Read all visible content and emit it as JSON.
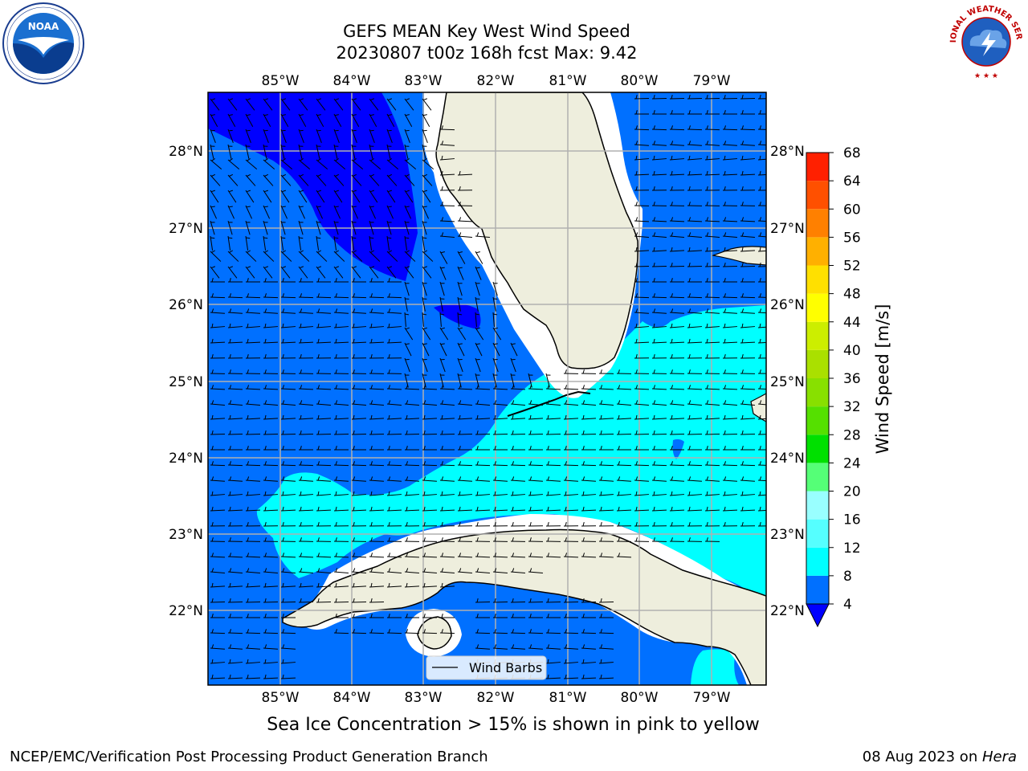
{
  "header": {
    "title_line1": "GEFS MEAN Key West Wind Speed",
    "title_line2": "20230807 t00z 168h fcst   Max: 9.42"
  },
  "logos": {
    "left": "NOAA",
    "right_text": "NATIONAL WEATHER SERVICE"
  },
  "map": {
    "lon_labels": [
      "85°W",
      "84°W",
      "83°W",
      "82°W",
      "81°W",
      "80°W",
      "79°W"
    ],
    "lat_labels": [
      "28°N",
      "27°N",
      "26°N",
      "25°N",
      "24°N",
      "23°N",
      "22°N"
    ],
    "legend_label": "Wind Barbs",
    "colors": {
      "land": "#eeeedd",
      "no_data": "#ffffff",
      "speed_0_4": "#0000ff",
      "speed_4_8": "#0070ff",
      "speed_8_12": "#00ffff",
      "grid": "#b0b0b0"
    }
  },
  "colorbar": {
    "label": "Wind Speed [m/s]",
    "ticks": [
      "4",
      "8",
      "12",
      "16",
      "20",
      "24",
      "28",
      "32",
      "36",
      "40",
      "44",
      "48",
      "52",
      "56",
      "60",
      "64",
      "68"
    ],
    "colors": [
      "#0070ff",
      "#00ffff",
      "#55ffff",
      "#99ffff",
      "#55ff77",
      "#00e000",
      "#55e000",
      "#88e000",
      "#aae000",
      "#ccee00",
      "#ffff00",
      "#ffe000",
      "#ffb000",
      "#ff8000",
      "#ff5000",
      "#ff2000"
    ],
    "underflow_color": "#0000ff"
  },
  "caption": "Sea Ice Concentration > 15% is shown in pink to yellow",
  "footer": {
    "left": "NCEP/EMC/Verification Post Processing Product Generation Branch",
    "date": "08 Aug 2023 on ",
    "machine": "Hera"
  }
}
